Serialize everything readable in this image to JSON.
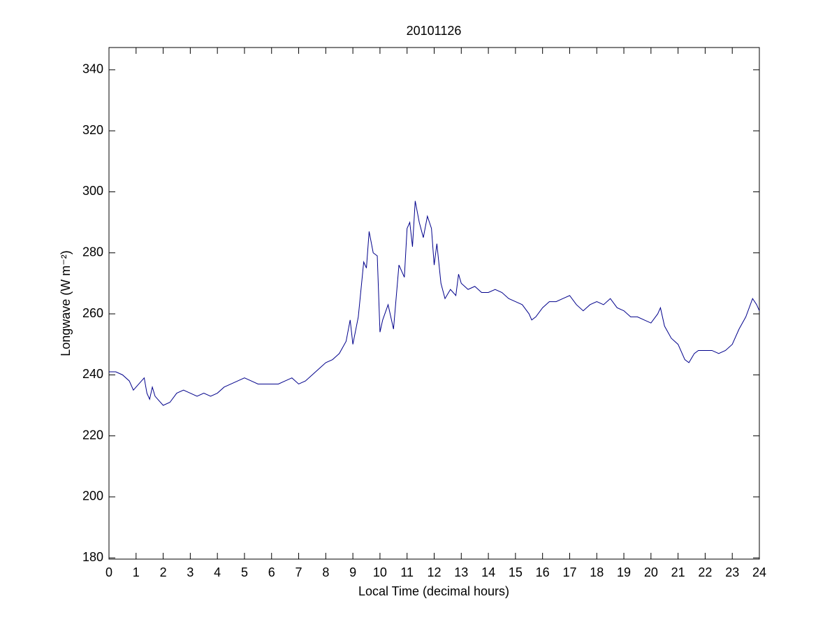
{
  "chart_data": {
    "type": "line",
    "title": "20101126",
    "xlabel": "Local Time (decimal hours)",
    "ylabel": "Longwave (W m⁻²)",
    "x": [
      0,
      0.25,
      0.5,
      0.75,
      0.9,
      1.0,
      1.2,
      1.3,
      1.4,
      1.5,
      1.6,
      1.7,
      1.8,
      2.0,
      2.25,
      2.5,
      2.75,
      3.0,
      3.25,
      3.5,
      3.75,
      4.0,
      4.25,
      4.5,
      4.75,
      5.0,
      5.25,
      5.5,
      5.75,
      6.0,
      6.25,
      6.5,
      6.75,
      7.0,
      7.25,
      7.5,
      7.75,
      8.0,
      8.25,
      8.5,
      8.75,
      8.9,
      9.0,
      9.2,
      9.4,
      9.5,
      9.6,
      9.75,
      9.9,
      10.0,
      10.1,
      10.3,
      10.5,
      10.7,
      10.9,
      11.0,
      11.1,
      11.2,
      11.3,
      11.45,
      11.6,
      11.75,
      11.9,
      12.0,
      12.1,
      12.25,
      12.4,
      12.6,
      12.8,
      12.9,
      13.0,
      13.25,
      13.5,
      13.75,
      14.0,
      14.25,
      14.5,
      14.75,
      15.0,
      15.25,
      15.5,
      15.6,
      15.75,
      16.0,
      16.25,
      16.5,
      16.75,
      17.0,
      17.25,
      17.5,
      17.75,
      18.0,
      18.25,
      18.5,
      18.75,
      19.0,
      19.25,
      19.5,
      19.75,
      20.0,
      20.25,
      20.35,
      20.5,
      20.75,
      21.0,
      21.25,
      21.4,
      21.6,
      21.75,
      22.0,
      22.25,
      22.5,
      22.75,
      23.0,
      23.25,
      23.5,
      23.75,
      23.9,
      24.0
    ],
    "series": [
      {
        "color": "#00008b",
        "values": [
          241,
          241,
          240,
          238,
          235,
          236,
          238,
          239,
          234,
          232,
          236,
          233,
          232,
          230,
          231,
          234,
          235,
          234,
          233,
          234,
          233,
          234,
          236,
          237,
          238,
          239,
          238,
          237,
          237,
          237,
          237,
          238,
          239,
          237,
          238,
          240,
          242,
          244,
          245,
          247,
          251,
          258,
          250,
          259,
          277,
          275,
          287,
          280,
          279,
          254,
          258,
          263,
          255,
          276,
          272,
          288,
          290,
          282,
          297,
          290,
          285,
          292,
          288,
          276,
          283,
          270,
          265,
          268,
          266,
          273,
          270,
          268,
          269,
          267,
          267,
          268,
          267,
          265,
          264,
          263,
          260,
          258,
          259,
          262,
          264,
          264,
          265,
          266,
          263,
          261,
          263,
          264,
          263,
          265,
          262,
          261,
          259,
          259,
          258,
          257,
          260,
          262,
          256,
          252,
          250,
          245,
          244,
          247,
          248,
          248,
          248,
          247,
          248,
          250,
          255,
          259,
          265,
          263,
          261
        ]
      }
    ],
    "xlim": [
      0,
      24
    ],
    "ylim": [
      179.6,
      347.3
    ],
    "xticks": [
      0,
      1,
      2,
      3,
      4,
      5,
      6,
      7,
      8,
      9,
      10,
      11,
      12,
      13,
      14,
      15,
      16,
      17,
      18,
      19,
      20,
      21,
      22,
      23,
      24
    ],
    "yticks": [
      180,
      200,
      220,
      240,
      260,
      280,
      300,
      320,
      340
    ]
  }
}
